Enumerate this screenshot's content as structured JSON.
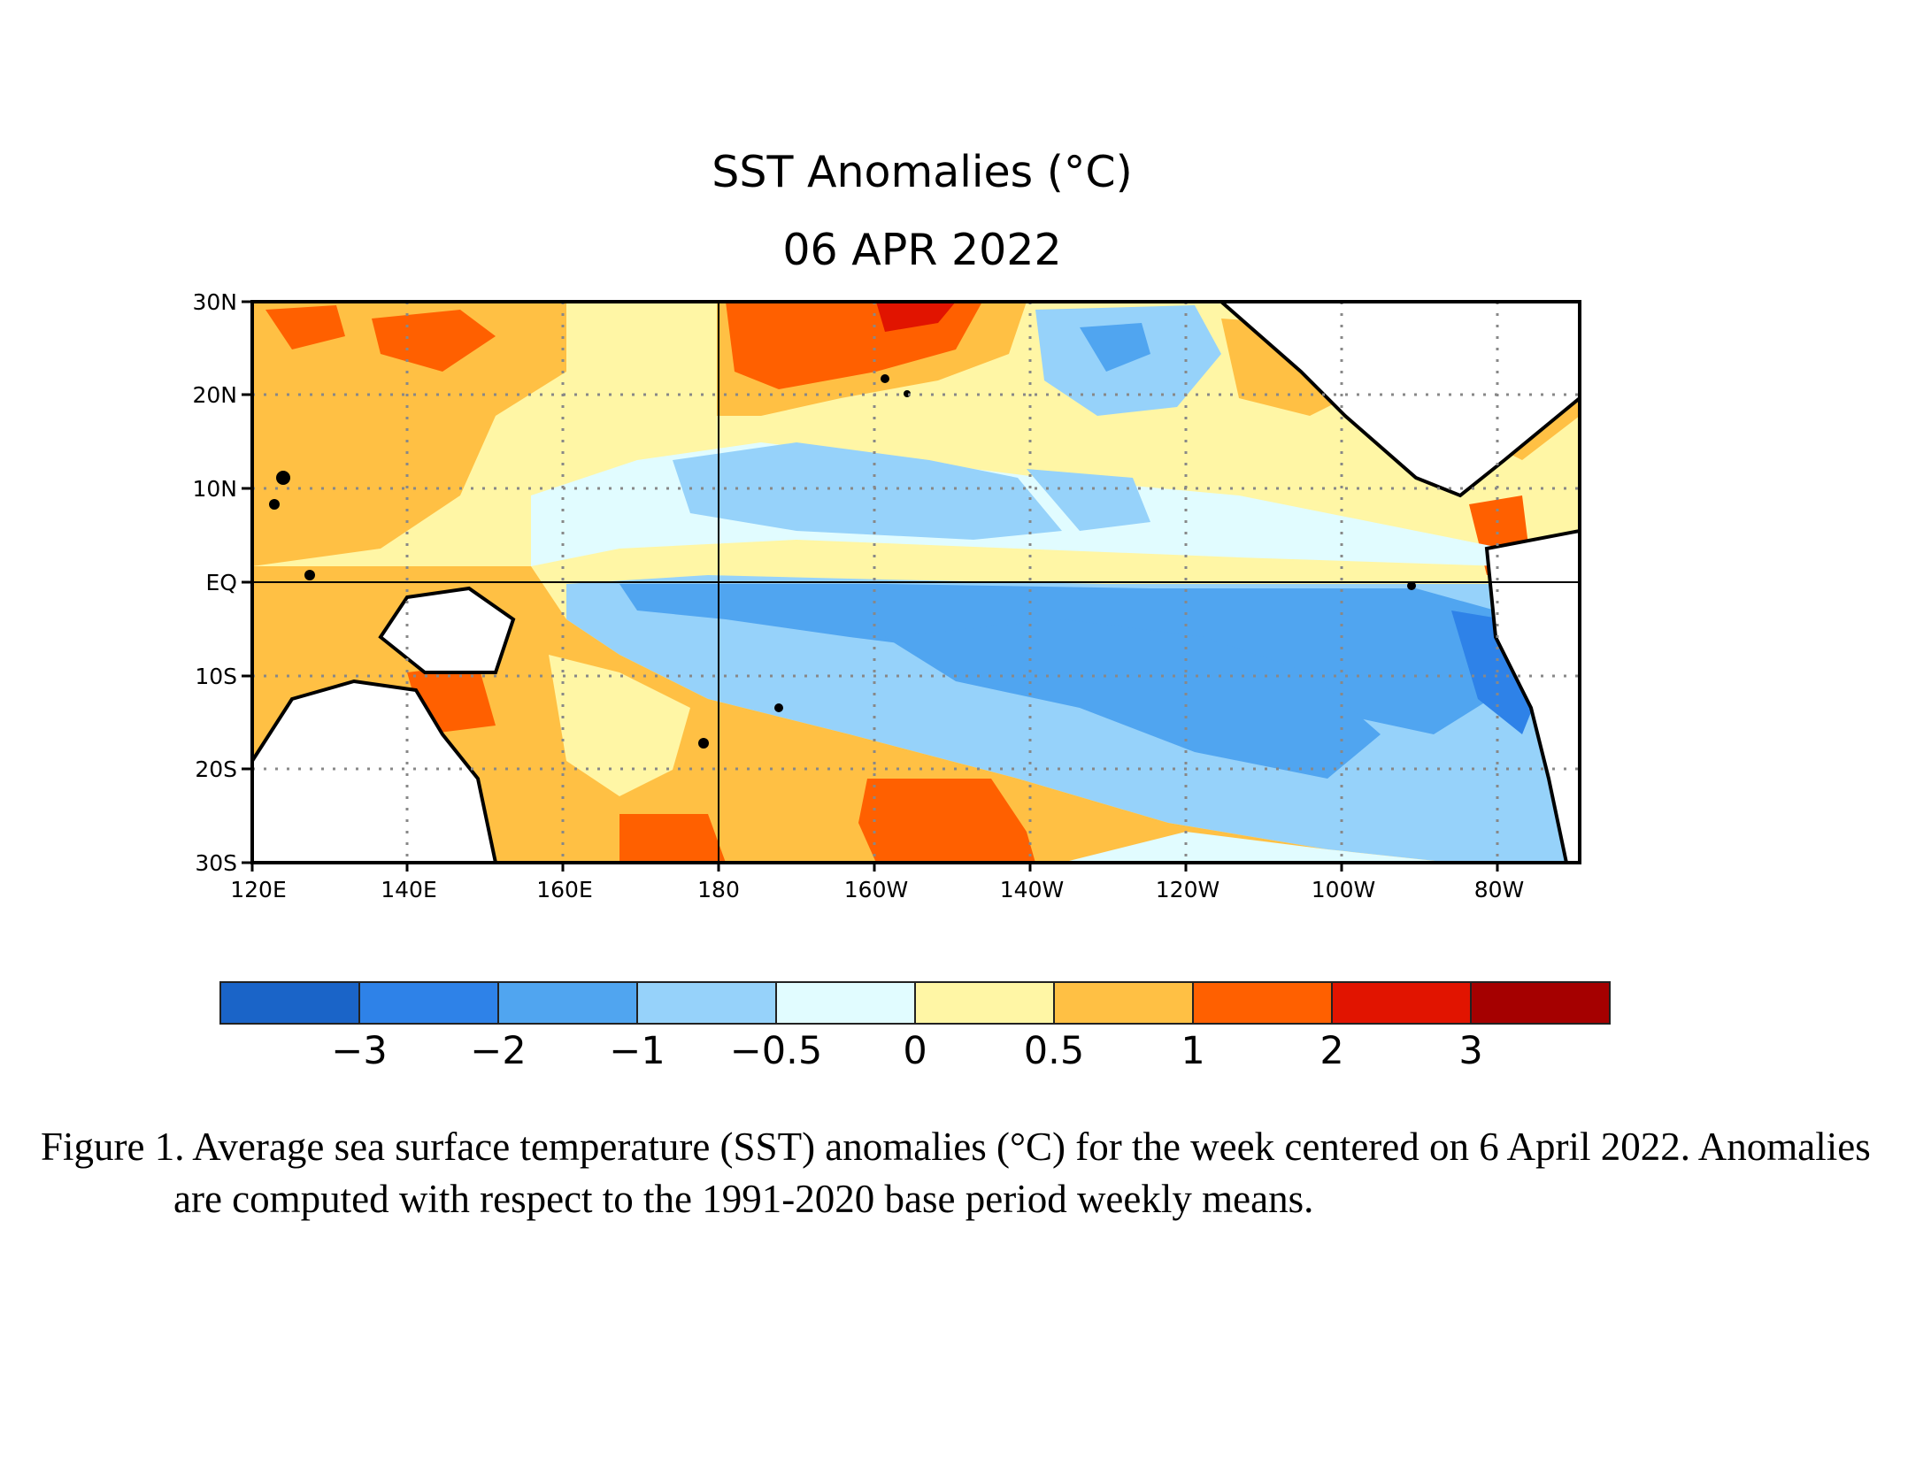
{
  "title": "SST Anomalies (°C)",
  "date": "06 APR 2022",
  "latitude_labels": [
    "30N",
    "20N",
    "10N",
    "EQ",
    "10S",
    "20S",
    "30S"
  ],
  "longitude_labels": [
    "120E",
    "140E",
    "160E",
    "180",
    "160W",
    "140W",
    "120W",
    "100W",
    "80W"
  ],
  "colorbar": {
    "colors": [
      "#1a64c8",
      "#2e82e8",
      "#50a5f0",
      "#96d2fa",
      "#e1fcff",
      "#fff6a5",
      "#ffc044",
      "#ff6000",
      "#e11400",
      "#a50000"
    ],
    "tick_labels": [
      "−3",
      "−2",
      "−1",
      "−0.5",
      "0",
      "0.5",
      "1",
      "2",
      "3"
    ]
  },
  "caption": "Figure 1. Average sea surface temperature (SST) anomalies (°C) for the week centered on 6 April 2022.  Anomalies are computed with respect to the 1991-2020 base period weekly means."
}
